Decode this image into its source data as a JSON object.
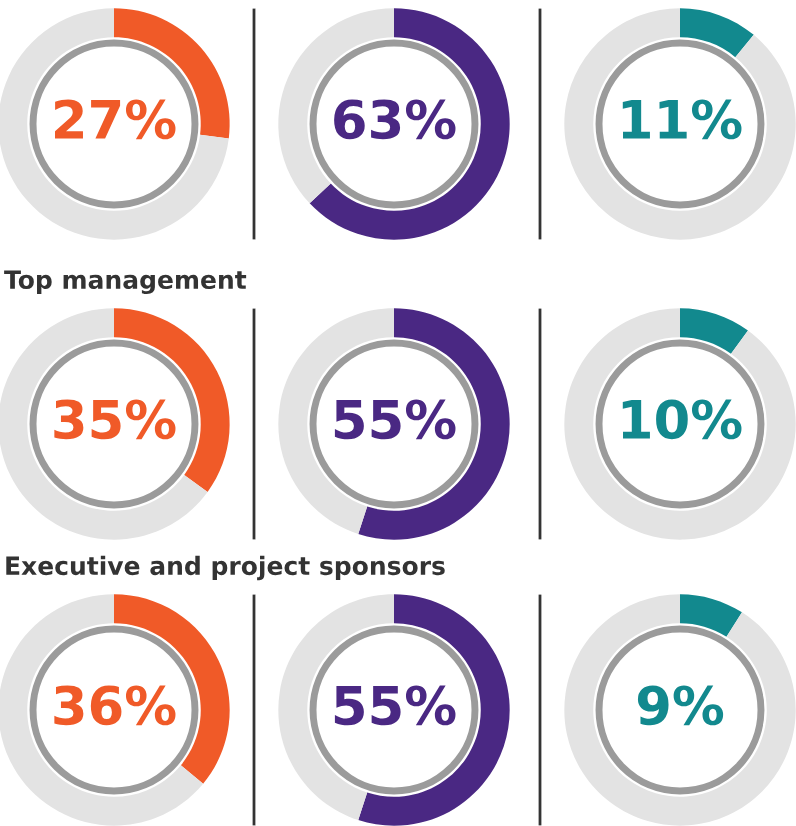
{
  "chart_data": [
    {
      "type": "donut",
      "categories": [
        null,
        null
      ],
      "values": [
        27,
        73
      ],
      "colors": [
        "#f05a28",
        "#e3e3e3"
      ],
      "value_labels": [
        "27%",
        null
      ]
    },
    {
      "type": "donut",
      "categories": [
        null,
        null
      ],
      "values": [
        63,
        37
      ],
      "colors": [
        "#4a2883",
        "#e3e3e3"
      ],
      "value_labels": [
        "63%",
        null
      ]
    },
    {
      "type": "donut",
      "categories": [
        null,
        null
      ],
      "values": [
        11,
        89
      ],
      "colors": [
        "#12898e",
        "#e3e3e3"
      ],
      "value_labels": [
        "11%",
        null
      ]
    },
    {
      "type": "donut",
      "title": "Top management",
      "categories": [
        null,
        null
      ],
      "values": [
        35,
        65
      ],
      "colors": [
        "#f05a28",
        "#e3e3e3"
      ],
      "value_labels": [
        "35%",
        null
      ]
    },
    {
      "type": "donut",
      "categories": [
        null,
        null
      ],
      "values": [
        55,
        45
      ],
      "colors": [
        "#4a2883",
        "#e3e3e3"
      ],
      "value_labels": [
        "55%",
        null
      ]
    },
    {
      "type": "donut",
      "categories": [
        null,
        null
      ],
      "values": [
        10,
        90
      ],
      "colors": [
        "#12898e",
        "#e3e3e3"
      ],
      "value_labels": [
        "10%",
        null
      ]
    },
    {
      "type": "donut",
      "title": "Executive and project sponsors",
      "categories": [
        null,
        null
      ],
      "values": [
        36,
        64
      ],
      "colors": [
        "#f05a28",
        "#e3e3e3"
      ],
      "value_labels": [
        "36%",
        null
      ]
    },
    {
      "type": "donut",
      "categories": [
        null,
        null
      ],
      "values": [
        55,
        45
      ],
      "colors": [
        "#4a2883",
        "#e3e3e3"
      ],
      "value_labels": [
        "55%",
        null
      ]
    },
    {
      "type": "donut",
      "categories": [
        null,
        null
      ],
      "values": [
        9,
        91
      ],
      "colors": [
        "#12898e",
        "#e3e3e3"
      ],
      "value_labels": [
        "9%",
        null
      ]
    }
  ]
}
